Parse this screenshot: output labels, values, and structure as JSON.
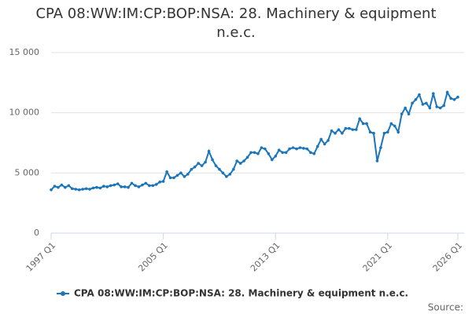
{
  "chart_data": {
    "type": "line",
    "title": "CPA 08:WW:IM:CP:BOP:NSA: 28. Machinery & equipment n.e.c.",
    "source": "Source:",
    "categories": [
      "1997 Q1",
      null,
      null,
      null,
      null,
      null,
      null,
      null,
      null,
      null,
      null,
      null,
      null,
      null,
      null,
      null,
      null,
      null,
      null,
      null,
      null,
      null,
      null,
      null,
      null,
      null,
      null,
      null,
      null,
      null,
      null,
      null,
      "2005 Q1",
      null,
      null,
      null,
      null,
      null,
      null,
      null,
      null,
      null,
      null,
      null,
      null,
      null,
      null,
      null,
      null,
      null,
      null,
      null,
      null,
      null,
      null,
      null,
      null,
      null,
      null,
      null,
      null,
      null,
      null,
      null,
      "2013 Q1",
      null,
      null,
      null,
      null,
      null,
      null,
      null,
      null,
      null,
      null,
      null,
      null,
      null,
      null,
      null,
      null,
      null,
      null,
      null,
      null,
      null,
      null,
      null,
      null,
      null,
      null,
      null,
      null,
      null,
      null,
      null,
      "2021 Q1",
      null,
      null,
      null,
      null,
      null,
      null,
      null,
      null,
      null,
      null,
      null,
      null,
      null,
      null,
      null,
      null,
      null,
      null,
      null,
      "2026 Q1"
    ],
    "series": [
      {
        "name": "CPA 08:WW:IM:CP:BOP:NSA: 28. Machinery & equipment n.e.c.",
        "color": "#1b75bb",
        "values": [
          3600,
          3900,
          3800,
          4000,
          3800,
          3950,
          3700,
          3650,
          3600,
          3650,
          3700,
          3650,
          3750,
          3800,
          3750,
          3900,
          3850,
          3950,
          4000,
          4100,
          3850,
          3850,
          3800,
          4150,
          3950,
          3850,
          4000,
          4150,
          3950,
          3950,
          4050,
          4250,
          4300,
          5100,
          4600,
          4600,
          4800,
          5000,
          4700,
          4900,
          5300,
          5500,
          5800,
          5600,
          5900,
          6800,
          6100,
          5600,
          5300,
          5000,
          4700,
          4900,
          5300,
          6000,
          5800,
          6000,
          6300,
          6700,
          6700,
          6600,
          7100,
          7000,
          6600,
          6100,
          6400,
          6900,
          6700,
          6700,
          7000,
          7100,
          7000,
          7100,
          7050,
          7000,
          6700,
          6600,
          7200,
          7800,
          7400,
          7700,
          8500,
          8300,
          8600,
          8300,
          8700,
          8700,
          8600,
          8600,
          9500,
          9100,
          9100,
          8400,
          8300,
          6000,
          7100,
          8300,
          8400,
          9100,
          8900,
          8400,
          9900,
          10400,
          9900,
          10800,
          11100,
          11500,
          10700,
          10800,
          10400,
          11600,
          10500,
          10400,
          10600,
          11700,
          11200,
          11100,
          11300
        ]
      }
    ],
    "ylim": [
      0,
      15000
    ],
    "yticks": [
      0,
      {
        "value": 5000,
        "label": "5 000"
      },
      {
        "value": 10000,
        "label": "10 000"
      },
      {
        "value": 15000,
        "label": "15 000"
      }
    ],
    "grid": true
  }
}
